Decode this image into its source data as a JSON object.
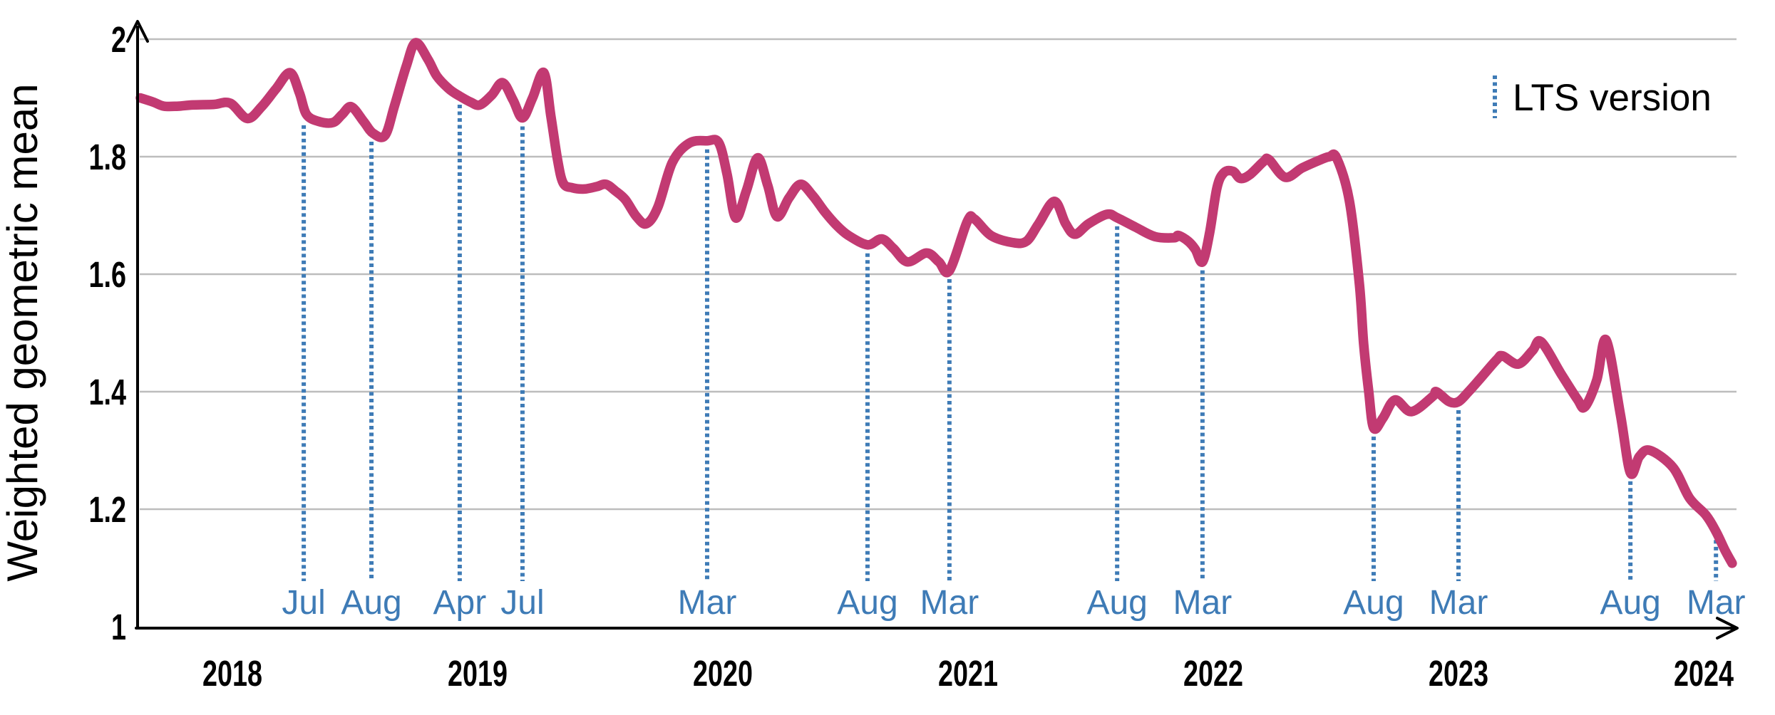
{
  "legend": {
    "label": "LTS version"
  },
  "colors": {
    "series_line": "#c23a72",
    "lts_marker": "#3e7bb6",
    "gridline": "#bdbdbd",
    "axis": "#000000",
    "background": "#ffffff"
  },
  "chart_data": {
    "type": "line",
    "title": "",
    "xlabel": "",
    "ylabel": "Weighted geometric mean",
    "ylim": [
      1,
      2
    ],
    "xlim": [
      2017.62,
      2024.16
    ],
    "grid": "horizontal gridlines at each y tick",
    "legend_position": "top-right",
    "legend_entries": [
      "LTS version"
    ],
    "yticks": [
      {
        "value": 2,
        "label": "2"
      },
      {
        "value": 1.8,
        "label": "1.8"
      },
      {
        "value": 1.6,
        "label": "1.6"
      },
      {
        "value": 1.4,
        "label": "1.4"
      },
      {
        "value": 1.2,
        "label": "1.2"
      },
      {
        "value": 1,
        "label": "1"
      }
    ],
    "year_ticks": [
      {
        "value": 2018,
        "label": "2018"
      },
      {
        "value": 2019,
        "label": "2019"
      },
      {
        "value": 2020,
        "label": "2020"
      },
      {
        "value": 2021,
        "label": "2021"
      },
      {
        "value": 2022,
        "label": "2022"
      },
      {
        "value": 2023,
        "label": "2023"
      },
      {
        "value": 2024,
        "label": "2024"
      }
    ],
    "lts_markers": [
      {
        "label": "Jul",
        "t": 2018.291,
        "curve_value": 1.868
      },
      {
        "label": "Aug",
        "t": 2018.567,
        "curve_value": 1.84
      },
      {
        "label": "Apr",
        "t": 2018.927,
        "curve_value": 1.903
      },
      {
        "label": "Jul",
        "t": 2019.183,
        "curve_value": 1.866
      },
      {
        "label": "Mar",
        "t": 2019.936,
        "curve_value": 1.827
      },
      {
        "label": "Aug",
        "t": 2020.59,
        "curve_value": 1.65
      },
      {
        "label": "Mar",
        "t": 2020.924,
        "curve_value": 1.606
      },
      {
        "label": "Aug",
        "t": 2021.608,
        "curve_value": 1.696
      },
      {
        "label": "Mar",
        "t": 2021.956,
        "curve_value": 1.621
      },
      {
        "label": "Aug",
        "t": 2022.654,
        "curve_value": 1.338
      },
      {
        "label": "Mar",
        "t": 2023.0,
        "curve_value": 1.383
      },
      {
        "label": "Aug",
        "t": 2023.701,
        "curve_value": 1.262
      },
      {
        "label": "Mar",
        "t": 2024.05,
        "curve_value": 1.162
      }
    ],
    "series": [
      {
        "name": "Weighted geometric mean",
        "color": "#c23a72",
        "points": [
          [
            2017.625,
            1.9
          ],
          [
            2017.677,
            1.893
          ],
          [
            2017.721,
            1.886
          ],
          [
            2017.779,
            1.886
          ],
          [
            2017.837,
            1.888
          ],
          [
            2017.924,
            1.889
          ],
          [
            2017.991,
            1.891
          ],
          [
            2018.061,
            1.865
          ],
          [
            2018.119,
            1.885
          ],
          [
            2018.177,
            1.915
          ],
          [
            2018.235,
            1.943
          ],
          [
            2018.273,
            1.909
          ],
          [
            2018.302,
            1.872
          ],
          [
            2018.352,
            1.86
          ],
          [
            2018.41,
            1.858
          ],
          [
            2018.448,
            1.872
          ],
          [
            2018.485,
            1.885
          ],
          [
            2018.535,
            1.86
          ],
          [
            2018.573,
            1.84
          ],
          [
            2018.622,
            1.836
          ],
          [
            2018.66,
            1.885
          ],
          [
            2018.709,
            1.954
          ],
          [
            2018.747,
            1.994
          ],
          [
            2018.797,
            1.966
          ],
          [
            2018.834,
            1.937
          ],
          [
            2018.884,
            1.915
          ],
          [
            2018.927,
            1.903
          ],
          [
            2018.971,
            1.893
          ],
          [
            2019.009,
            1.888
          ],
          [
            2019.058,
            1.905
          ],
          [
            2019.102,
            1.926
          ],
          [
            2019.145,
            1.896
          ],
          [
            2019.183,
            1.866
          ],
          [
            2019.224,
            1.9
          ],
          [
            2019.27,
            1.943
          ],
          [
            2019.299,
            1.868
          ],
          [
            2019.326,
            1.795
          ],
          [
            2019.349,
            1.755
          ],
          [
            2019.387,
            1.747
          ],
          [
            2019.436,
            1.745
          ],
          [
            2019.485,
            1.749
          ],
          [
            2019.523,
            1.753
          ],
          [
            2019.561,
            1.742
          ],
          [
            2019.602,
            1.727
          ],
          [
            2019.648,
            1.698
          ],
          [
            2019.689,
            1.686
          ],
          [
            2019.735,
            1.714
          ],
          [
            2019.794,
            1.79
          ],
          [
            2019.863,
            1.823
          ],
          [
            2019.936,
            1.827
          ],
          [
            2019.983,
            1.824
          ],
          [
            2020.017,
            1.771
          ],
          [
            2020.052,
            1.696
          ],
          [
            2020.096,
            1.742
          ],
          [
            2020.142,
            1.798
          ],
          [
            2020.183,
            1.751
          ],
          [
            2020.221,
            1.698
          ],
          [
            2020.27,
            1.73
          ],
          [
            2020.317,
            1.753
          ],
          [
            2020.366,
            1.734
          ],
          [
            2020.416,
            1.706
          ],
          [
            2020.462,
            1.684
          ],
          [
            2020.512,
            1.666
          ],
          [
            2020.59,
            1.65
          ],
          [
            2020.648,
            1.66
          ],
          [
            2020.695,
            1.644
          ],
          [
            2020.753,
            1.621
          ],
          [
            2020.831,
            1.636
          ],
          [
            2020.881,
            1.621
          ],
          [
            2020.924,
            1.606
          ],
          [
            2020.997,
            1.69
          ],
          [
            2021.026,
            1.694
          ],
          [
            2021.093,
            1.666
          ],
          [
            2021.18,
            1.654
          ],
          [
            2021.238,
            1.656
          ],
          [
            2021.288,
            1.686
          ],
          [
            2021.352,
            1.724
          ],
          [
            2021.398,
            1.686
          ],
          [
            2021.436,
            1.668
          ],
          [
            2021.492,
            1.686
          ],
          [
            2021.567,
            1.702
          ],
          [
            2021.608,
            1.696
          ],
          [
            2021.683,
            1.68
          ],
          [
            2021.762,
            1.664
          ],
          [
            2021.84,
            1.662
          ],
          [
            2021.858,
            1.666
          ],
          [
            2021.898,
            1.656
          ],
          [
            2021.927,
            1.642
          ],
          [
            2021.956,
            1.621
          ],
          [
            2021.985,
            1.67
          ],
          [
            2022.015,
            1.747
          ],
          [
            2022.044,
            1.773
          ],
          [
            2022.081,
            1.775
          ],
          [
            2022.11,
            1.763
          ],
          [
            2022.148,
            1.769
          ],
          [
            2022.206,
            1.792
          ],
          [
            2022.227,
            1.795
          ],
          [
            2022.293,
            1.765
          ],
          [
            2022.363,
            1.781
          ],
          [
            2022.439,
            1.795
          ],
          [
            2022.474,
            1.8
          ],
          [
            2022.503,
            1.798
          ],
          [
            2022.555,
            1.725
          ],
          [
            2022.596,
            1.583
          ],
          [
            2022.613,
            1.482
          ],
          [
            2022.634,
            1.4
          ],
          [
            2022.654,
            1.338
          ],
          [
            2022.692,
            1.355
          ],
          [
            2022.741,
            1.386
          ],
          [
            2022.808,
            1.366
          ],
          [
            2022.895,
            1.392
          ],
          [
            2022.91,
            1.4
          ],
          [
            2022.962,
            1.383
          ],
          [
            2023.0,
            1.383
          ],
          [
            2023.041,
            1.4
          ],
          [
            2023.09,
            1.423
          ],
          [
            2023.157,
            1.455
          ],
          [
            2023.18,
            1.461
          ],
          [
            2023.244,
            1.447
          ],
          [
            2023.302,
            1.47
          ],
          [
            2023.337,
            1.485
          ],
          [
            2023.419,
            1.43
          ],
          [
            2023.485,
            1.387
          ],
          [
            2023.515,
            1.374
          ],
          [
            2023.564,
            1.42
          ],
          [
            2023.602,
            1.488
          ],
          [
            2023.66,
            1.362
          ],
          [
            2023.701,
            1.262
          ],
          [
            2023.738,
            1.29
          ],
          [
            2023.782,
            1.3
          ],
          [
            2023.875,
            1.271
          ],
          [
            2023.942,
            1.219
          ],
          [
            2024.009,
            1.19
          ],
          [
            2024.05,
            1.162
          ],
          [
            2024.087,
            1.13
          ],
          [
            2024.116,
            1.108
          ]
        ]
      }
    ]
  }
}
